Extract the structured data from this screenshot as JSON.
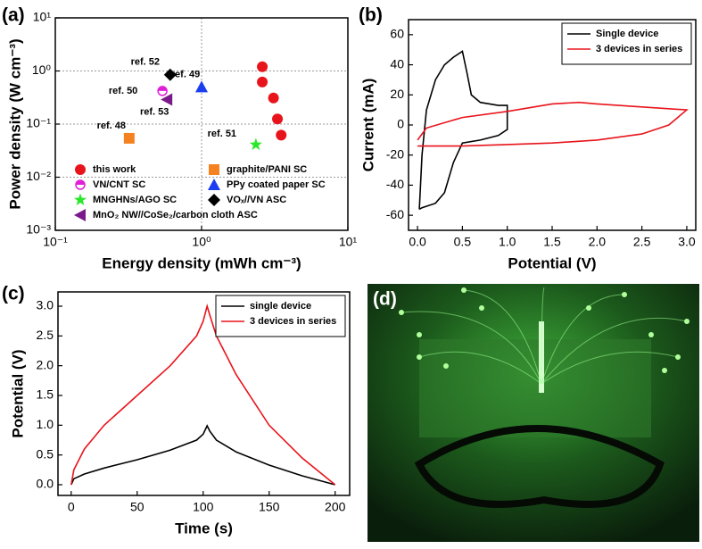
{
  "chart_data": [
    {
      "type": "scatter",
      "label": "(a)",
      "xlabel": "Energy density (mWh cm⁻³)",
      "ylabel": "Power density (W cm⁻³)",
      "xlog": true,
      "ylog": true,
      "grid": true,
      "xlim": [
        0.1,
        10
      ],
      "ylim": [
        0.001,
        10
      ],
      "xticks": [
        {
          "value": 0.1,
          "label": "10⁻¹"
        },
        {
          "value": 1,
          "label": "10⁰"
        },
        {
          "value": 10,
          "label": "10¹"
        }
      ],
      "yticks": [
        {
          "value": 0.001,
          "label": "10⁻³"
        },
        {
          "value": 0.01,
          "label": "10⁻²"
        },
        {
          "value": 0.1,
          "label": "10⁻¹"
        },
        {
          "value": 1,
          "label": "10⁰"
        },
        {
          "value": 10,
          "label": "10¹"
        }
      ],
      "series": [
        {
          "name": "this work",
          "color": "#e8141b",
          "marker": "circle",
          "x": [
            2.6,
            2.6,
            3.1,
            3.3,
            3.5
          ],
          "y": [
            1.2,
            0.62,
            0.31,
            0.125,
            0.062
          ]
        },
        {
          "name": "graphite/PANI SC",
          "color": "#f58220",
          "marker": "square",
          "x": [
            0.32
          ],
          "y": [
            0.054
          ],
          "annotation": "ref. 48"
        },
        {
          "name": "VN/CNT SC",
          "color": "#e020d8",
          "marker": "half-circle",
          "x": [
            0.54
          ],
          "y": [
            0.42
          ],
          "annotation": "ref. 50"
        },
        {
          "name": "PPy coated paper SC",
          "color": "#1a3ef0",
          "marker": "triangle",
          "x": [
            1.0
          ],
          "y": [
            0.5
          ],
          "annotation": "ref. 49"
        },
        {
          "name": "MNGHNs/AGO SC",
          "color": "#28e828",
          "marker": "star",
          "x": [
            2.35
          ],
          "y": [
            0.041
          ],
          "annotation": "ref. 51"
        },
        {
          "name": "VOₓ//VN ASC",
          "color": "#000000",
          "marker": "diamond",
          "x": [
            0.61
          ],
          "y": [
            0.85
          ],
          "annotation": "ref. 52"
        },
        {
          "name": "MnO₂ NW//CoSe₂/carbon cloth ASC",
          "color": "#7a1a8a",
          "marker": "triangle-left",
          "x": [
            0.58
          ],
          "y": [
            0.29
          ],
          "annotation": "ref. 53"
        }
      ]
    },
    {
      "type": "line",
      "label": "(b)",
      "xlabel": "Potential (V)",
      "ylabel": "Current (mA)",
      "xlim": [
        -0.1,
        3.1
      ],
      "ylim": [
        -70,
        70
      ],
      "xticks": [
        {
          "value": 0,
          "label": "0.0"
        },
        0.5,
        {
          "value": 1,
          "label": "1.0"
        },
        1.5,
        {
          "value": 2,
          "label": "2.0"
        },
        2.5,
        {
          "value": 3,
          "label": "3.0"
        }
      ],
      "yticks": [
        -60,
        -40,
        -20,
        0,
        20,
        40,
        60
      ],
      "series": [
        {
          "name": "Single device",
          "color": "#000000",
          "x": [
            0.02,
            0.05,
            0.1,
            0.2,
            0.3,
            0.4,
            0.5,
            0.55,
            0.6,
            0.7,
            0.9,
            1.0,
            1.0,
            0.9,
            0.7,
            0.5,
            0.4,
            0.3,
            0.2,
            0.05,
            0.02
          ],
          "y": [
            -56,
            -20,
            10,
            30,
            40,
            45,
            49,
            35,
            20,
            15,
            13,
            13,
            -3,
            -7,
            -10,
            -12,
            -25,
            -45,
            -52,
            -55,
            -56
          ]
        },
        {
          "name": "3 devices in series",
          "color": "#e8141b",
          "x": [
            0,
            0.5,
            1.0,
            1.5,
            2.0,
            2.5,
            2.8,
            3.0,
            2.5,
            2.0,
            1.8,
            1.5,
            1.0,
            0.5,
            0.1,
            0
          ],
          "y": [
            -14,
            -14,
            -13,
            -12,
            -10,
            -6,
            0,
            10,
            12,
            14,
            15,
            14,
            9,
            5,
            -2,
            -10
          ]
        }
      ]
    },
    {
      "type": "line",
      "label": "(c)",
      "xlabel": "Time (s)",
      "ylabel": "Potential (V)",
      "xlim": [
        -10,
        211
      ],
      "ylim": [
        -0.18,
        3.24
      ],
      "xticks": [
        0,
        50,
        100,
        150,
        200
      ],
      "yticks": [
        {
          "value": 0,
          "label": "0.0"
        },
        0.5,
        {
          "value": 1,
          "label": "1.0"
        },
        1.5,
        {
          "value": 2,
          "label": "2.0"
        },
        2.5,
        {
          "value": 3,
          "label": "3.0"
        }
      ],
      "series": [
        {
          "name": "single device",
          "color": "#000000",
          "x": [
            0,
            2,
            10,
            25,
            50,
            75,
            95,
            100,
            103,
            105,
            110,
            125,
            150,
            175,
            200
          ],
          "y": [
            0,
            0.1,
            0.18,
            0.28,
            0.42,
            0.58,
            0.75,
            0.85,
            0.99,
            0.9,
            0.75,
            0.55,
            0.33,
            0.15,
            0
          ]
        },
        {
          "name": "3 devices in series",
          "color": "#e8141b",
          "x": [
            0,
            2,
            10,
            25,
            50,
            75,
            95,
            100,
            103,
            105,
            110,
            125,
            150,
            175,
            200
          ],
          "y": [
            0,
            0.25,
            0.6,
            1.0,
            1.5,
            2.0,
            2.5,
            2.75,
            3.0,
            2.85,
            2.5,
            1.85,
            1.0,
            0.45,
            0
          ]
        }
      ]
    },
    {
      "type": "photo",
      "label": "(d)"
    }
  ]
}
